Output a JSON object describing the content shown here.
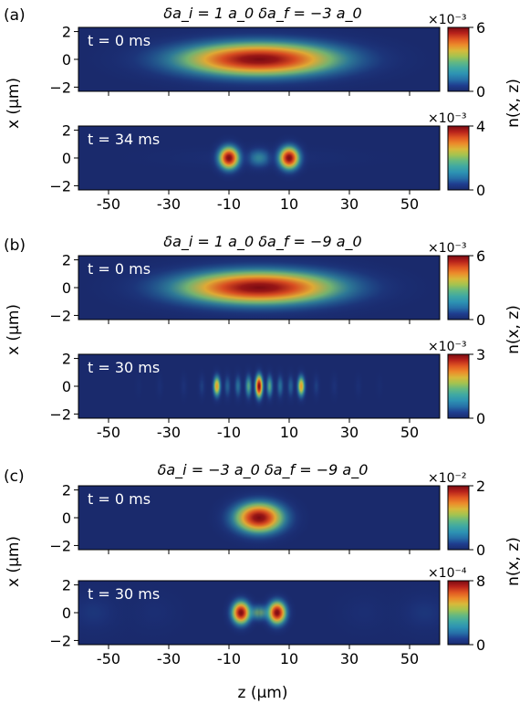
{
  "colormap": [
    "#1a2a6c",
    "#1f3d8f",
    "#2670a8",
    "#2d92b3",
    "#3ea8a4",
    "#63b882",
    "#a3c350",
    "#d8b93a",
    "#ec8a2a",
    "#e05722",
    "#b8221b",
    "#7a0b12"
  ],
  "figure": {
    "xlabel": "z (μm)",
    "ylabel": "x (μm)",
    "cblabel": "n(x, z)",
    "x_ticks": [
      "-50",
      "-30",
      "-10",
      "10",
      "30",
      "50"
    ],
    "y_ticks": [
      "2",
      "0",
      "−2"
    ]
  },
  "chart_data": [
    {
      "type": "heatmap",
      "panel": "(a)",
      "title": "δa_i = 1 a_0    δa_f = −3 a_0",
      "xlim": [
        -60,
        60
      ],
      "ylim": [
        -2.3,
        2.3
      ],
      "subplots": [
        {
          "time_label": "t = 0 ms",
          "colorbar": {
            "max": "6",
            "min": "0",
            "exponent": "×10⁻³"
          },
          "blobs": [
            {
              "z": 0,
              "x": 0,
              "sz": 20,
              "sx": 0.9,
              "amp": 1.0
            }
          ]
        },
        {
          "time_label": "t = 34 ms",
          "colorbar": {
            "max": "4",
            "min": "0",
            "exponent": "×10⁻³"
          },
          "blobs": [
            {
              "z": -10,
              "x": 0,
              "sz": 2.5,
              "sx": 0.6,
              "amp": 1.0
            },
            {
              "z": 10,
              "x": 0,
              "sz": 2.5,
              "sx": 0.6,
              "amp": 1.0
            },
            {
              "z": 0,
              "x": 0,
              "sz": 3,
              "sx": 0.5,
              "amp": 0.35
            },
            {
              "z": 0,
              "x": 0,
              "sz": 22,
              "sx": 0.5,
              "amp": 0.08
            }
          ]
        }
      ]
    },
    {
      "type": "heatmap",
      "panel": "(b)",
      "title": "δa_i = 1 a_0    δa_f = −9 a_0",
      "xlim": [
        -60,
        60
      ],
      "ylim": [
        -2.3,
        2.3
      ],
      "subplots": [
        {
          "time_label": "t = 0 ms",
          "colorbar": {
            "max": "6",
            "min": "0",
            "exponent": "×10⁻³"
          },
          "blobs": [
            {
              "z": 0,
              "x": 0,
              "sz": 20,
              "sx": 0.9,
              "amp": 1.0
            }
          ]
        },
        {
          "time_label": "t = 30 ms",
          "colorbar": {
            "max": "3",
            "min": "0",
            "exponent": "×10⁻³"
          },
          "blobs": [
            {
              "z": 0,
              "x": 0,
              "sz": 0.9,
              "sx": 0.6,
              "amp": 1.0
            },
            {
              "z": -14,
              "x": 0,
              "sz": 0.9,
              "sx": 0.55,
              "amp": 0.7
            },
            {
              "z": 14,
              "x": 0,
              "sz": 0.9,
              "sx": 0.55,
              "amp": 0.7
            },
            {
              "z": -3.5,
              "x": 0,
              "sz": 0.8,
              "sx": 0.6,
              "amp": 0.45
            },
            {
              "z": 3.5,
              "x": 0,
              "sz": 0.8,
              "sx": 0.6,
              "amp": 0.45
            },
            {
              "z": -7,
              "x": 0,
              "sz": 0.8,
              "sx": 0.6,
              "amp": 0.3
            },
            {
              "z": 7,
              "x": 0,
              "sz": 0.8,
              "sx": 0.6,
              "amp": 0.3
            },
            {
              "z": -10.5,
              "x": 0,
              "sz": 0.8,
              "sx": 0.6,
              "amp": 0.25
            },
            {
              "z": 10.5,
              "x": 0,
              "sz": 0.8,
              "sx": 0.6,
              "amp": 0.25
            },
            {
              "z": -19,
              "x": 0,
              "sz": 0.8,
              "sx": 0.6,
              "amp": 0.15
            },
            {
              "z": 19,
              "x": 0,
              "sz": 0.8,
              "sx": 0.6,
              "amp": 0.15
            },
            {
              "z": -25,
              "x": 0,
              "sz": 0.8,
              "sx": 0.6,
              "amp": 0.1
            },
            {
              "z": 25,
              "x": 0,
              "sz": 0.8,
              "sx": 0.6,
              "amp": 0.1
            },
            {
              "z": -33,
              "x": 0,
              "sz": 0.8,
              "sx": 0.6,
              "amp": 0.08
            },
            {
              "z": 33,
              "x": 0,
              "sz": 0.8,
              "sx": 0.6,
              "amp": 0.08
            },
            {
              "z": -40,
              "x": 0,
              "sz": 0.8,
              "sx": 0.6,
              "amp": 0.05
            },
            {
              "z": 40,
              "x": 0,
              "sz": 0.8,
              "sx": 0.6,
              "amp": 0.05
            }
          ]
        }
      ]
    },
    {
      "type": "heatmap",
      "panel": "(c)",
      "title": "δa_i = −3 a_0    δa_f = −9 a_0",
      "xlim": [
        -60,
        60
      ],
      "ylim": [
        -2.3,
        2.3
      ],
      "subplots": [
        {
          "time_label": "t = 0 ms",
          "colorbar": {
            "max": "2",
            "min": "0",
            "exponent": "×10⁻²"
          },
          "blobs": [
            {
              "z": 0,
              "x": 0,
              "sz": 6,
              "sx": 0.8,
              "amp": 1.0
            }
          ]
        },
        {
          "time_label": "t = 30 ms",
          "colorbar": {
            "max": "8",
            "min": "0",
            "exponent": "×10⁻⁴"
          },
          "blobs": [
            {
              "z": -6,
              "x": 0,
              "sz": 2.2,
              "sx": 0.6,
              "amp": 1.0
            },
            {
              "z": 6,
              "x": 0,
              "sz": 2.2,
              "sx": 0.6,
              "amp": 1.0
            },
            {
              "z": 0,
              "x": 0,
              "sz": 4,
              "sx": 0.4,
              "amp": 0.5
            },
            {
              "z": -55,
              "x": 0,
              "sz": 6,
              "sx": 1.0,
              "amp": 0.12
            },
            {
              "z": 55,
              "x": 0,
              "sz": 6,
              "sx": 1.0,
              "amp": 0.12
            },
            {
              "z": -35,
              "x": 0,
              "sz": 6,
              "sx": 1.0,
              "amp": 0.07
            },
            {
              "z": 35,
              "x": 0,
              "sz": 6,
              "sx": 1.0,
              "amp": 0.07
            }
          ]
        }
      ]
    }
  ]
}
